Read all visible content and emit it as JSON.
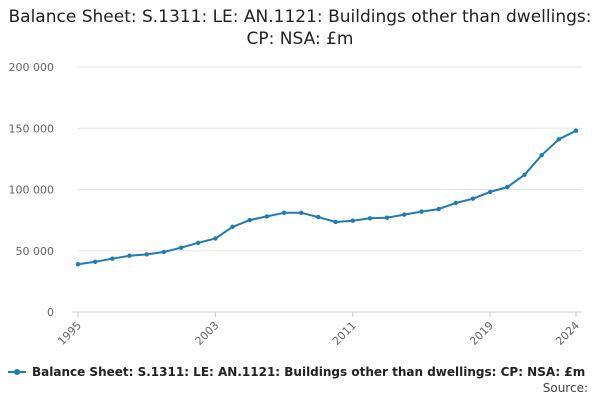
{
  "chart_data": {
    "type": "line",
    "title": "Balance Sheet: S.1311: LE: AN.1121: Buildings other than dwellings: CP: NSA: £m",
    "x": [
      1995,
      1996,
      1997,
      1998,
      1999,
      2000,
      2001,
      2002,
      2003,
      2004,
      2005,
      2006,
      2007,
      2008,
      2009,
      2010,
      2011,
      2012,
      2013,
      2014,
      2015,
      2016,
      2017,
      2018,
      2019,
      2020,
      2021,
      2022,
      2023,
      2024
    ],
    "series": [
      {
        "name": "Balance Sheet: S.1311: LE: AN.1121: Buildings other than dwellings: CP: NSA: £m",
        "values": [
          39000,
          41000,
          43500,
          46000,
          47000,
          49000,
          52500,
          56500,
          60000,
          69500,
          75000,
          78000,
          81000,
          81000,
          77500,
          73500,
          74500,
          76500,
          77000,
          79500,
          82000,
          84000,
          89000,
          92500,
          98000,
          102000,
          112000,
          128000,
          141000,
          148000
        ]
      }
    ],
    "xticks": [
      1995,
      2003,
      2011,
      2019,
      2024
    ],
    "yticks": [
      0,
      50000,
      100000,
      150000,
      200000
    ],
    "ytick_labels": [
      "0",
      "50 000",
      "100 000",
      "150 000",
      "200 000"
    ],
    "ylim": [
      0,
      200000
    ],
    "xlim": [
      1995,
      2024
    ],
    "grid": true,
    "legend": "bottom",
    "color": "#1f7bb5"
  },
  "source_label": "Source:"
}
